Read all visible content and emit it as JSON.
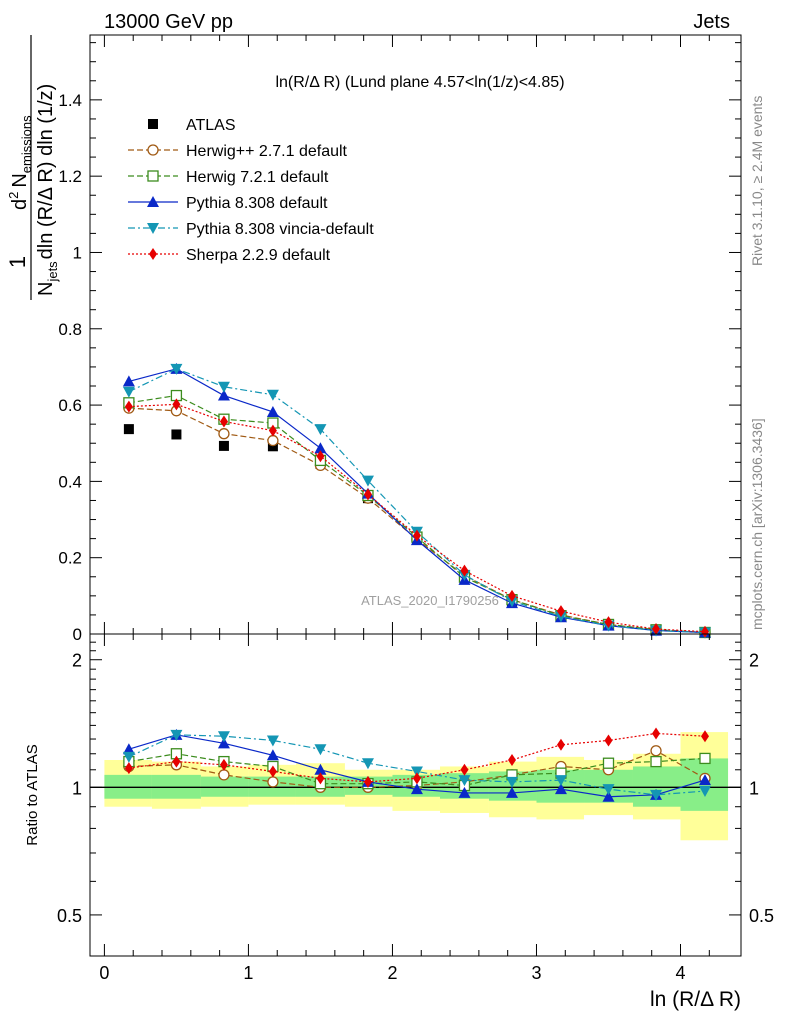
{
  "header": {
    "left": "13000 GeV pp",
    "right": "Jets"
  },
  "side_labels": {
    "rivet": "Rivet 3.1.10, ≥ 2.4M events",
    "mcplots": "mcplots.cern.ch [arXiv:1306.3436]"
  },
  "watermark": "ATLAS_2020_I1790256",
  "chart_data": [
    {
      "type": "line",
      "title": "ln(R/Δ R) (Lund plane 4.57<ln(1/z)<4.85)",
      "ylabel": "1/N_jets d²N_emissions / dln(R/ΔR) dln(1/z)",
      "ylabel_parts": {
        "one": "1",
        "d2": "d",
        "sup2": "2",
        "N1": "N",
        "sub1": "emissions",
        "N2": "N",
        "sub2": "jets",
        "rest": "dln (R/Δ R) dln (1/z)"
      },
      "xlim": [
        -0.1,
        4.42
      ],
      "ylim": [
        0,
        1.57
      ],
      "x_ticks": [
        0,
        1,
        2,
        3,
        4
      ],
      "y_ticks": [
        0,
        0.2,
        0.4,
        0.6,
        0.8,
        1,
        1.2,
        1.4
      ],
      "y_tick_labels": [
        "0",
        "0.2",
        "0.4",
        "0.6",
        "0.8",
        "1",
        "1.2",
        "1.4"
      ],
      "legend_position": "top-left",
      "x": [
        0.17,
        0.5,
        0.83,
        1.17,
        1.5,
        1.83,
        2.17,
        2.5,
        2.83,
        3.17,
        3.5,
        3.83,
        4.17
      ],
      "series": [
        {
          "name": "ATLAS",
          "color": "#000000",
          "marker": "square-filled",
          "line": "none",
          "values": [
            0.537,
            0.523,
            0.493,
            0.492,
            0.446,
            0.356,
            0.247,
            0.148,
            0.084,
            0.045,
            0.023,
            0.009,
            0.004
          ]
        },
        {
          "name": "Herwig++ 2.7.1 default",
          "color": "#a05a14",
          "marker": "circle-open",
          "line": "dashed",
          "values": [
            0.592,
            0.585,
            0.525,
            0.507,
            0.442,
            0.356,
            0.248,
            0.153,
            0.09,
            0.05,
            0.025,
            0.011,
            0.004
          ]
        },
        {
          "name": "Herwig 7.2.1 default",
          "color": "#3c8c1e",
          "marker": "square-open",
          "line": "dashed",
          "values": [
            0.606,
            0.625,
            0.563,
            0.553,
            0.455,
            0.363,
            0.254,
            0.149,
            0.09,
            0.048,
            0.025,
            0.011,
            0.004
          ]
        },
        {
          "name": "Pythia 8.308 default",
          "color": "#0a28c8",
          "marker": "triangle-up-filled",
          "line": "solid",
          "values": [
            0.662,
            0.695,
            0.625,
            0.582,
            0.487,
            0.368,
            0.246,
            0.142,
            0.081,
            0.044,
            0.022,
            0.009,
            0.004
          ]
        },
        {
          "name": "Pythia 8.308 vincia-default",
          "color": "#1496b4",
          "marker": "triangle-down-filled",
          "line": "dashdot",
          "values": [
            0.635,
            0.695,
            0.648,
            0.627,
            0.537,
            0.402,
            0.268,
            0.155,
            0.086,
            0.046,
            0.022,
            0.009,
            0.004
          ]
        },
        {
          "name": "Sherpa 2.2.9 default",
          "color": "#e60000",
          "marker": "diamond-filled",
          "line": "dotted",
          "values": [
            0.596,
            0.602,
            0.557,
            0.533,
            0.466,
            0.366,
            0.258,
            0.166,
            0.1,
            0.06,
            0.031,
            0.013,
            0.006
          ]
        }
      ]
    },
    {
      "type": "line",
      "xlabel": "ln (R/Δ R)",
      "ylabel": "Ratio to ATLAS",
      "log_y": true,
      "xlim": [
        -0.1,
        4.42
      ],
      "ylim": [
        0.4,
        2.3
      ],
      "x_ticks": [
        0,
        1,
        2,
        3,
        4
      ],
      "x_tick_labels": [
        "0",
        "1",
        "2",
        "3",
        "4"
      ],
      "y_ticks": [
        0.5,
        1,
        2
      ],
      "y_tick_labels": [
        "0.5",
        "1",
        "2"
      ],
      "x": [
        0.17,
        0.5,
        0.83,
        1.17,
        1.5,
        1.83,
        2.17,
        2.5,
        2.83,
        3.17,
        3.5,
        3.83,
        4.17
      ],
      "bands": {
        "x_edges": [
          0.0,
          0.33,
          0.67,
          1.0,
          1.33,
          1.67,
          2.0,
          2.33,
          2.67,
          3.0,
          3.33,
          3.67,
          4.0,
          4.33
        ],
        "green": [
          [
            0.94,
            1.07
          ],
          [
            0.94,
            1.07
          ],
          [
            0.95,
            1.06
          ],
          [
            0.95,
            1.06
          ],
          [
            0.95,
            1.06
          ],
          [
            0.96,
            1.06
          ],
          [
            0.95,
            1.07
          ],
          [
            0.94,
            1.08
          ],
          [
            0.93,
            1.09
          ],
          [
            0.92,
            1.1
          ],
          [
            0.92,
            1.1
          ],
          [
            0.9,
            1.12
          ],
          [
            0.88,
            1.17
          ]
        ],
        "yellow": [
          [
            0.9,
            1.16
          ],
          [
            0.89,
            1.15
          ],
          [
            0.9,
            1.12
          ],
          [
            0.91,
            1.13
          ],
          [
            0.91,
            1.14
          ],
          [
            0.9,
            1.1
          ],
          [
            0.88,
            1.1
          ],
          [
            0.87,
            1.12
          ],
          [
            0.85,
            1.15
          ],
          [
            0.84,
            1.18
          ],
          [
            0.86,
            1.16
          ],
          [
            0.84,
            1.2
          ],
          [
            0.75,
            1.35
          ]
        ]
      },
      "series": [
        {
          "name": "Herwig++ 2.7.1 default",
          "color": "#a05a14",
          "marker": "circle-open",
          "line": "dashed",
          "values": [
            1.12,
            1.13,
            1.07,
            1.03,
            1.0,
            1.0,
            1.01,
            1.03,
            1.07,
            1.12,
            1.1,
            1.22,
            1.05
          ]
        },
        {
          "name": "Herwig 7.2.1 default",
          "color": "#3c8c1e",
          "marker": "square-open",
          "line": "dashed",
          "values": [
            1.15,
            1.2,
            1.15,
            1.12,
            1.02,
            1.02,
            1.03,
            1.01,
            1.07,
            1.08,
            1.14,
            1.15,
            1.17
          ]
        },
        {
          "name": "Pythia 8.308 default",
          "color": "#0a28c8",
          "marker": "triangle-up-filled",
          "line": "solid",
          "values": [
            1.23,
            1.33,
            1.27,
            1.19,
            1.1,
            1.03,
            0.99,
            0.97,
            0.97,
            0.99,
            0.95,
            0.96,
            1.04
          ]
        },
        {
          "name": "Pythia 8.308 vincia-default",
          "color": "#1496b4",
          "marker": "triangle-down-filled",
          "line": "dashdot",
          "values": [
            1.18,
            1.33,
            1.32,
            1.29,
            1.23,
            1.14,
            1.09,
            1.04,
            1.03,
            1.04,
            0.99,
            0.96,
            0.98
          ]
        },
        {
          "name": "Sherpa 2.2.9 default",
          "color": "#e60000",
          "marker": "diamond-filled",
          "line": "dotted",
          "values": [
            1.11,
            1.15,
            1.13,
            1.09,
            1.05,
            1.03,
            1.05,
            1.1,
            1.16,
            1.26,
            1.29,
            1.34,
            1.32
          ]
        }
      ]
    }
  ]
}
